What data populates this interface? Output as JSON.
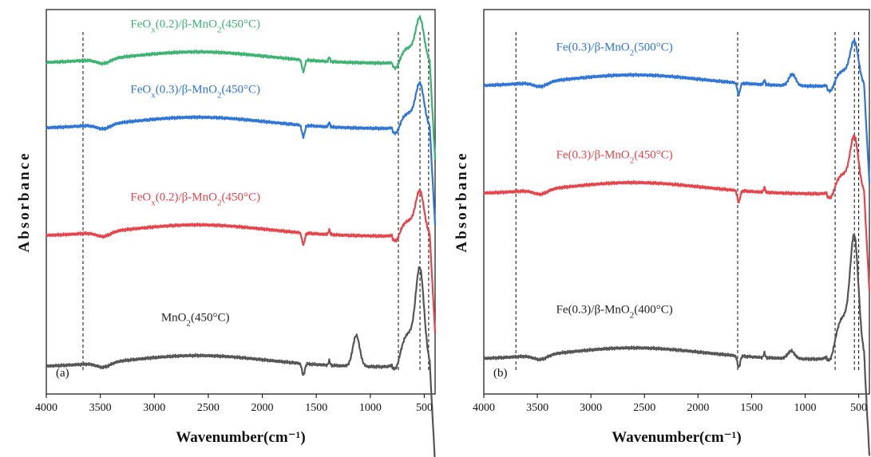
{
  "chart_data": [
    {
      "type": "line",
      "panel_label": "(a)",
      "xlabel": "Wavenumber(cm⁻¹)",
      "ylabel": "Absorbance",
      "xlim": [
        4000,
        400
      ],
      "xticks": [
        4000,
        3500,
        3000,
        2500,
        2000,
        1500,
        1000,
        500
      ],
      "ylim": [
        0,
        1
      ],
      "grid": false,
      "reference_lines": [
        3660,
        740,
        540,
        460
      ],
      "series": [
        {
          "name": "MnO₂(450°C)",
          "color": "#555555",
          "offset": 0.07,
          "label_parts": [
            [
              "MnO",
              ""
            ],
            [
              "2",
              "sub"
            ],
            [
              "(450°C)",
              ""
            ]
          ]
        },
        {
          "name": "FeOx(0.2)/β-MnO₂(450°C)",
          "color": "#e8434a",
          "offset": 0.41,
          "label_parts": [
            [
              "FeO",
              ""
            ],
            [
              "x",
              "sub"
            ],
            [
              "(0.2)/β-MnO",
              ""
            ],
            [
              "2",
              "sub"
            ],
            [
              "(450°C)",
              ""
            ]
          ]
        },
        {
          "name": "FeOx(0.3)/β-MnO₂(450°C)",
          "color": "#2e74d9",
          "offset": 0.69,
          "label_parts": [
            [
              "FeO",
              ""
            ],
            [
              "x",
              "sub"
            ],
            [
              "(0.3)/β-MnO",
              ""
            ],
            [
              "2",
              "sub"
            ],
            [
              "(450°C)",
              ""
            ]
          ]
        },
        {
          "name": "FeOx(0.2)/β-MnO₂(450°C)",
          "color": "#3cb371",
          "offset": 0.86,
          "label_parts": [
            [
              "FeO",
              ""
            ],
            [
              "x",
              "sub"
            ],
            [
              "(0.2)/β-MnO",
              ""
            ],
            [
              "2",
              "sub"
            ],
            [
              "(450°C)",
              ""
            ]
          ]
        }
      ]
    },
    {
      "type": "line",
      "panel_label": "(b)",
      "xlabel": "Wavenumber(cm⁻¹)",
      "ylabel": "Absorbance",
      "xlim": [
        4000,
        400
      ],
      "xticks": [
        4000,
        3500,
        3000,
        2500,
        2000,
        1500,
        1000,
        500
      ],
      "ylim": [
        0,
        1
      ],
      "grid": false,
      "reference_lines": [
        3700,
        1630,
        720,
        540,
        500
      ],
      "series": [
        {
          "name": "Fe(0.3)/β-MnO₂(400°C)",
          "color": "#555555",
          "offset": 0.09,
          "label_parts": [
            [
              "Fe(0.3)/β-MnO",
              ""
            ],
            [
              "2",
              "sub"
            ],
            [
              "(400°C)",
              ""
            ]
          ]
        },
        {
          "name": "Fe(0.3)/β-MnO₂(450°C)",
          "color": "#e8434a",
          "offset": 0.52,
          "label_parts": [
            [
              "Fe(0.3)/β-MnO",
              ""
            ],
            [
              "2",
              "sub"
            ],
            [
              "(450°C)",
              ""
            ]
          ]
        },
        {
          "name": "Fe(0.3)/β-MnO₂(500°C)",
          "color": "#2e74d9",
          "offset": 0.8,
          "label_parts": [
            [
              "Fe(0.3)/β-MnO",
              ""
            ],
            [
              "2",
              "sub"
            ],
            [
              "(500°C)",
              ""
            ]
          ]
        }
      ]
    }
  ]
}
